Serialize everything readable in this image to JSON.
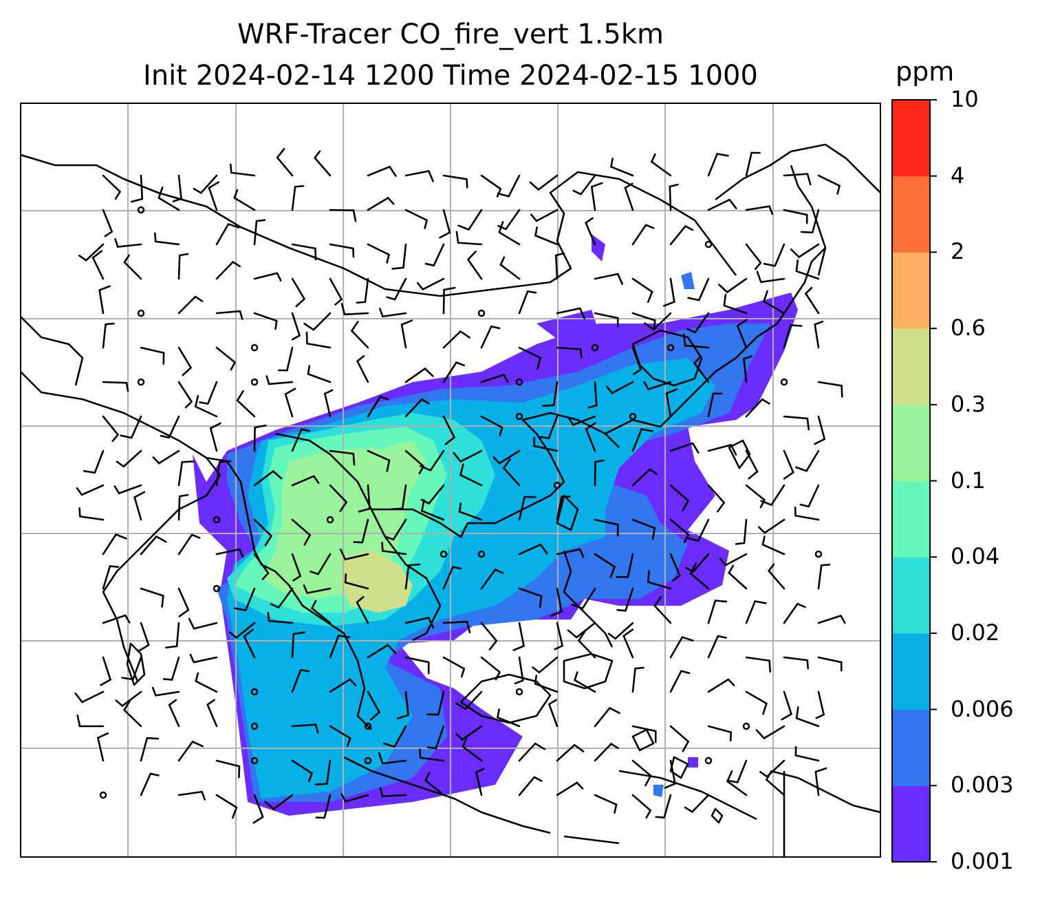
{
  "title": {
    "line1": "WRF-Tracer CO_fire_vert 1.5km",
    "line2": "Init 2024-02-14 1200 Time 2024-02-15 1000"
  },
  "colorbar": {
    "unit": "ppm",
    "ticks": [
      "0.001",
      "0.003",
      "0.006",
      "0.02",
      "0.04",
      "0.1",
      "0.3",
      "0.6",
      "2",
      "4",
      "10"
    ],
    "colors": [
      "#6a2cff",
      "#3377f0",
      "#08b0e8",
      "#2ee0d8",
      "#66f7bd",
      "#99f39a",
      "#d0e08a",
      "#ffb060",
      "#ff7038",
      "#ff2818"
    ]
  },
  "map": {
    "gridlines": "on",
    "field_colors": {
      "low": "#6a2cff",
      "lowmid": "#3377f0",
      "mid": "#08b0e8",
      "midhigh": "#2ee0d8",
      "high": "#66f7bd",
      "higher": "#99f39a",
      "peak": "#d0e08a"
    },
    "overlays": [
      "coastlines",
      "country-borders",
      "wind-barbs"
    ]
  }
}
